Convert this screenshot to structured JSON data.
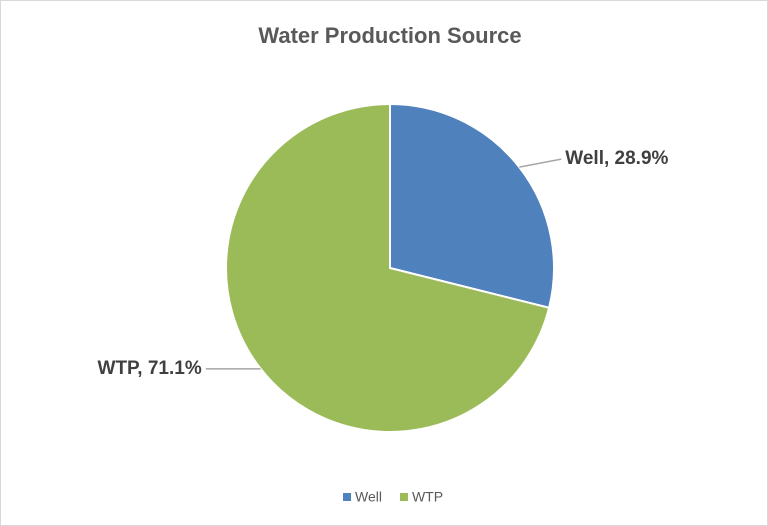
{
  "chart_data": {
    "type": "pie",
    "title": "Water Production Source",
    "categories": [
      "Well",
      "WTP"
    ],
    "values": [
      28.9,
      71.1
    ],
    "value_labels": [
      "Well, 28.9%",
      "WTP, 71.1%"
    ],
    "colors": [
      "#4f81bd",
      "#9bbb59"
    ],
    "legend": "bottom"
  }
}
